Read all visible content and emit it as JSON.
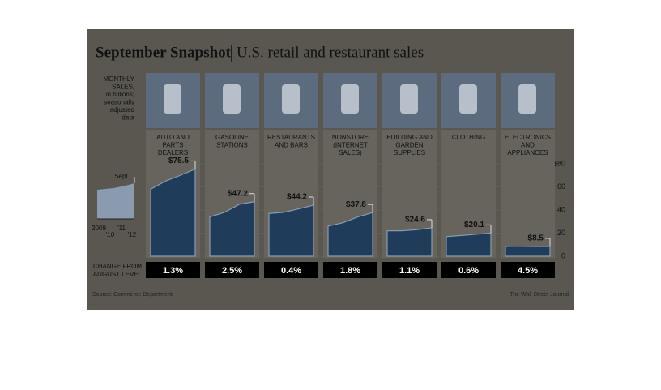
{
  "chart_data": {
    "type": "area",
    "title": "September Snapshot",
    "subtitle": "U.S. retail and restaurant sales",
    "y_label": [
      "MONTHLY",
      "SALES,",
      "in billions;",
      "seasonally",
      "adjusted",
      "data"
    ],
    "x": [
      "2009",
      "'10",
      "'11",
      "'12"
    ],
    "annotation": "Sept.",
    "change_title": [
      "CHANGE FROM",
      "AUGUST LEVEL"
    ],
    "ylim": [
      0,
      80
    ],
    "yticks": [
      {
        "value": 80,
        "label": "$80"
      },
      60,
      40,
      20,
      0
    ],
    "series": [
      {
        "name": [
          "AUTO AND",
          "PARTS",
          "DEALERS"
        ],
        "color": "#1f3d5a",
        "values": [
          58,
          65,
          70,
          75.5
        ],
        "label": "$75.5",
        "change": 1.3,
        "change_label": "1.3%"
      },
      {
        "name": [
          "GASOLINE",
          "STATIONS"
        ],
        "color": "#1f3d5a",
        "values": [
          34,
          38,
          45,
          47.2
        ],
        "label": "$47.2",
        "change": 2.5,
        "change_label": "2.5%"
      },
      {
        "name": [
          "RESTAURANTS",
          "AND BARS"
        ],
        "color": "#1f3d5a",
        "values": [
          37,
          38,
          41,
          44.2
        ],
        "label": "$44.2",
        "change": 0.4,
        "change_label": "0.4%"
      },
      {
        "name": [
          "NONSTORE",
          "(INTERNET",
          "SALES)"
        ],
        "color": "#1f3d5a",
        "values": [
          26,
          29,
          34,
          37.8
        ],
        "label": "$37.8",
        "change": 1.8,
        "change_label": "1.8%"
      },
      {
        "name": [
          "BUILDING AND",
          "GARDEN",
          "SUPPLIES"
        ],
        "color": "#1f3d5a",
        "values": [
          22,
          22,
          23,
          24.6
        ],
        "label": "$24.6",
        "change": 1.1,
        "change_label": "1.1%"
      },
      {
        "name": [
          "CLOTHING"
        ],
        "color": "#1f3d5a",
        "values": [
          17,
          18,
          19,
          20.1
        ],
        "label": "$20.1",
        "change": 0.6,
        "change_label": "0.6%"
      },
      {
        "name": [
          "ELECTRONICS",
          "AND",
          "APPLIANCES"
        ],
        "color": "#1f3d5a",
        "values": [
          8.5,
          8.6,
          8.4,
          8.5
        ],
        "label": "$8.5",
        "change": 4.5,
        "change_label": "4.5%"
      }
    ],
    "source": "Source: Commerce Department",
    "credit": "The Wall Street Journal"
  }
}
